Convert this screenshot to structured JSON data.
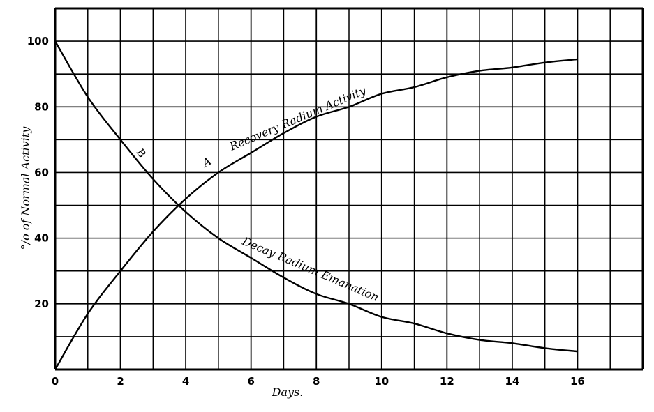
{
  "chart_data": {
    "type": "line",
    "xlabel": "Days.",
    "ylabel": "°/o of Normal Activity",
    "xlim": [
      0,
      18
    ],
    "ylim": [
      0,
      110
    ],
    "xticks": [
      0,
      2,
      4,
      6,
      8,
      10,
      12,
      14,
      16
    ],
    "yticks": [
      20,
      40,
      60,
      80,
      100
    ],
    "grid": true,
    "x": [
      0,
      1,
      2,
      3,
      4,
      5,
      6,
      7,
      8,
      9,
      10,
      11,
      12,
      13,
      14,
      15,
      16
    ],
    "series": [
      {
        "name": "A",
        "label": "Recovery Radium Activity",
        "values": [
          0,
          17,
          30,
          42,
          52,
          60,
          66,
          72,
          77,
          80,
          84,
          86,
          89,
          91,
          92,
          93.5,
          94.5
        ]
      },
      {
        "name": "B",
        "label": "Decay Radium Emanation",
        "values": [
          100,
          83,
          70,
          58,
          48,
          40,
          34,
          28,
          23,
          20,
          16,
          14,
          11,
          9,
          8,
          6.5,
          5.5
        ]
      }
    ],
    "colors": {
      "line": "#000000",
      "background": "#ffffff"
    }
  }
}
